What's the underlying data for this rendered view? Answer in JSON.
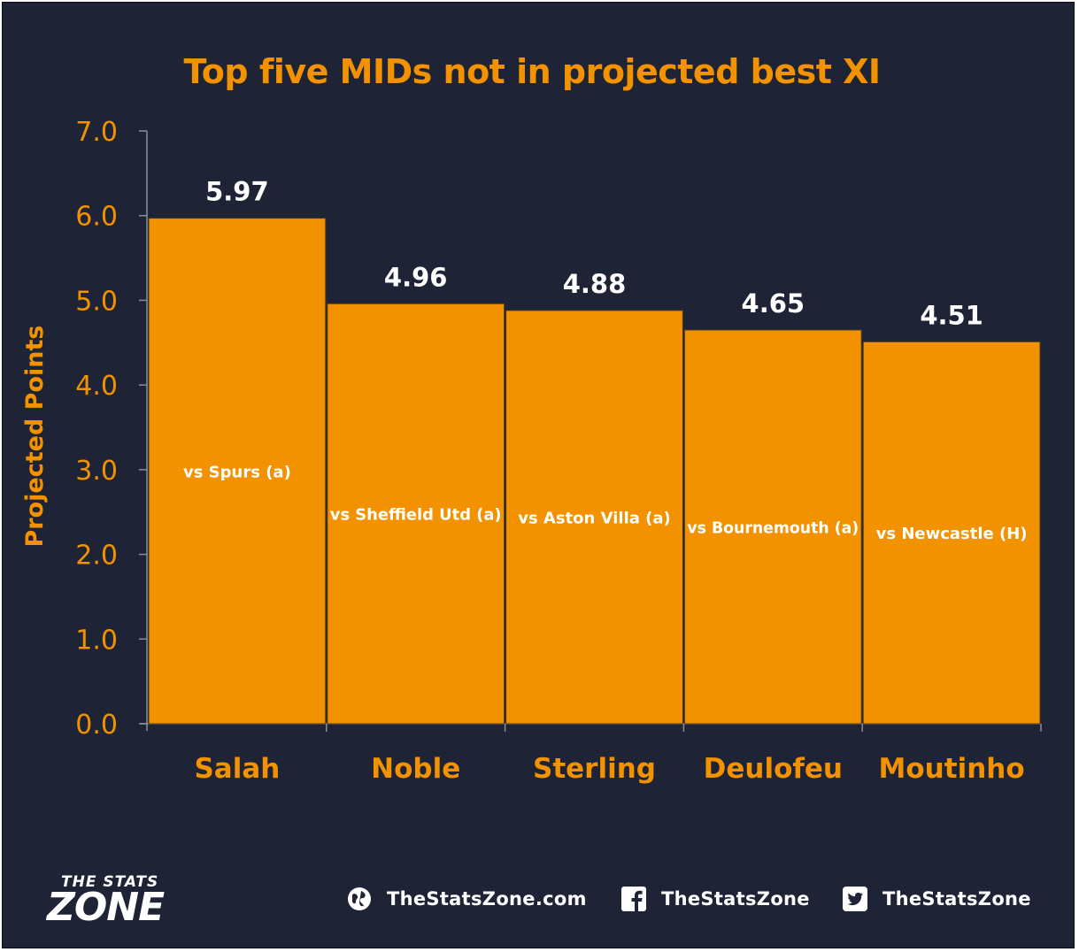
{
  "chart_data": {
    "type": "bar",
    "title": "Top five MIDs not in projected best XI",
    "ylabel": "Projected Points",
    "xlabel": "",
    "ylim": [
      0,
      7
    ],
    "yticks": [
      "0.0",
      "1.0",
      "2.0",
      "3.0",
      "4.0",
      "5.0",
      "6.0",
      "7.0"
    ],
    "categories": [
      "Salah",
      "Noble",
      "Sterling",
      "Deulofeu",
      "Moutinho"
    ],
    "values": [
      5.97,
      4.96,
      4.88,
      4.65,
      4.51
    ],
    "value_labels": [
      "5.97",
      "4.96",
      "4.88",
      "4.65",
      "4.51"
    ],
    "bar_labels": [
      "vs Spurs (a)",
      "vs Sheffield Utd (a)",
      "vs Aston Villa (a)",
      "vs Bournemouth (a)",
      "vs Newcastle (H)"
    ],
    "grid": false,
    "legend": "none",
    "colors": {
      "bar": "#f39200",
      "accent": "#f39200",
      "background": "#1e2436",
      "value_label": "#ffffff"
    }
  },
  "branding": {
    "logo_top": "THE STATS",
    "logo_main": "ZONE",
    "website": "TheStatsZone.com",
    "facebook": "TheStatsZone",
    "twitter": "TheStatsZone"
  },
  "icons": {
    "website": "globe-icon",
    "facebook": "facebook-icon",
    "twitter": "twitter-icon"
  }
}
